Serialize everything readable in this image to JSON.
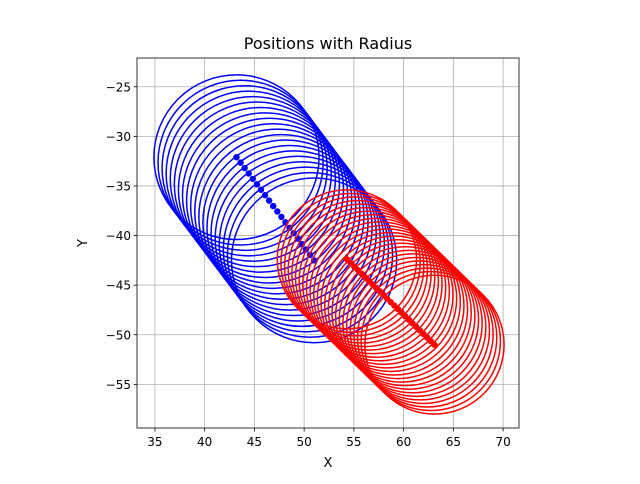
{
  "chart_data": {
    "type": "scatter",
    "title": "Positions with Radius",
    "xlabel": "X",
    "ylabel": "Y",
    "xlim": [
      33.2,
      71.6
    ],
    "ylim": [
      -59.4,
      -22.1
    ],
    "xticks": [
      35,
      40,
      45,
      50,
      55,
      60,
      65,
      70
    ],
    "yticks": [
      -55,
      -50,
      -45,
      -40,
      -35,
      -30,
      -25
    ],
    "grid": true,
    "aspect": "equal",
    "series": [
      {
        "color": "#0000ff",
        "radius": 8.3,
        "start": [
          43.2,
          -32.1
        ],
        "end": [
          51.0,
          -42.5
        ],
        "count": 20
      },
      {
        "color": "#ff0000",
        "radius": 7.0,
        "start": [
          54.3,
          -42.4
        ],
        "end": [
          63.1,
          -51.0
        ],
        "count": 25
      }
    ]
  }
}
